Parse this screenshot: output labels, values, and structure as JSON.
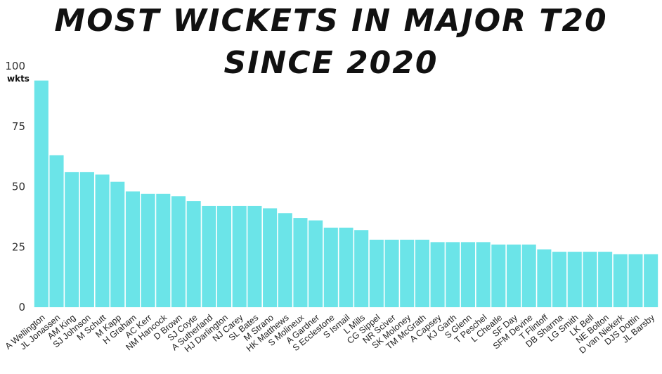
{
  "colors": {
    "bar": "#6be4e8",
    "background": "#ffffff",
    "text": "#111111"
  },
  "chart_data": {
    "type": "bar",
    "title": "MOST WICKETS IN MAJOR T20 SINCE 2020",
    "ylabel": "wkts",
    "xlabel": "",
    "ylim": [
      0,
      100
    ],
    "yticks": [
      0,
      25,
      50,
      75,
      100
    ],
    "grid": false,
    "categories": [
      "A Wellington",
      "JL Jonassen",
      "AM King",
      "SJ Johnson",
      "M Schutt",
      "M Kapp",
      "H Graham",
      "AC Kerr",
      "NM Hancock",
      "D Brown",
      "SJ Coyte",
      "A Sutherland",
      "HJ Darlington",
      "NJ Carey",
      "SL Bates",
      "M Strano",
      "HK Matthews",
      "S Molineux",
      "A Gardner",
      "S Ecclestone",
      "S Ismail",
      "L Mills",
      "CG Sippel",
      "NR Sciver",
      "SK Moloney",
      "TM McGrath",
      "A Capsey",
      "KJ Garth",
      "S Glenn",
      "T Peschel",
      "L Cheatle",
      "SF Day",
      "SFM Devine",
      "T Flintoff",
      "DB Sharma",
      "LG Smith",
      "LK Bell",
      "NE Bolton",
      "D van Niekerk",
      "DJS Dottin",
      "JL Barsby"
    ],
    "values": [
      94,
      63,
      56,
      56,
      55,
      52,
      48,
      47,
      47,
      46,
      44,
      42,
      42,
      42,
      42,
      41,
      39,
      37,
      36,
      33,
      33,
      32,
      28,
      28,
      28,
      28,
      27,
      27,
      27,
      27,
      26,
      26,
      26,
      24,
      23,
      23,
      23,
      23,
      22,
      22,
      22
    ]
  }
}
